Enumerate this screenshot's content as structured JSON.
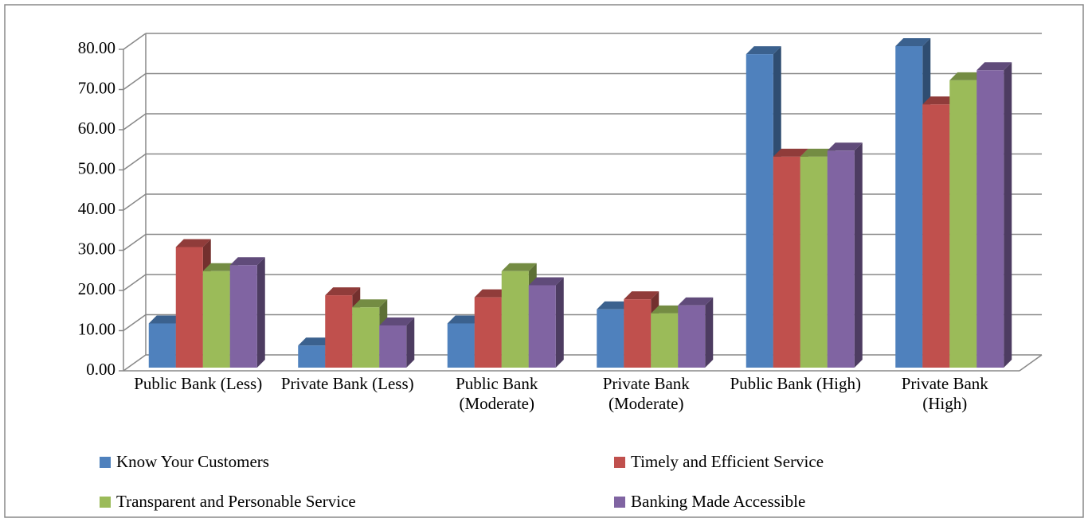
{
  "chart_data": {
    "type": "bar3d",
    "categories": [
      "Public Bank (Less)",
      "Private Bank (Less)",
      "Public Bank (Moderate)",
      "Private Bank (Moderate)",
      "Public Bank (High)",
      "Private Bank (High)"
    ],
    "series": [
      {
        "name": "Know Your Customers",
        "color": "#4f81bd",
        "values": [
          11,
          5.5,
          11,
          14.5,
          78,
          80
        ]
      },
      {
        "name": "Timely and Efficient Service",
        "color": "#c0504d",
        "values": [
          30,
          18,
          17.5,
          17,
          52.5,
          65.5
        ]
      },
      {
        "name": "Transparent and Personable Service",
        "color": "#9bbb59",
        "values": [
          24,
          15,
          24,
          13.5,
          52.5,
          71.5
        ]
      },
      {
        "name": "Banking Made Accessible",
        "color": "#8064a2",
        "values": [
          25.5,
          10.5,
          20.5,
          15.5,
          54,
          74
        ]
      }
    ],
    "ylim": [
      0,
      80
    ],
    "yticks": [
      {
        "value": 0,
        "label": "0.00"
      },
      {
        "value": 10,
        "label": "10.00"
      },
      {
        "value": 20,
        "label": "20.00"
      },
      {
        "value": 30,
        "label": "30.00"
      },
      {
        "value": 40,
        "label": "40.00"
      },
      {
        "value": 50,
        "label": "50.00"
      },
      {
        "value": 60,
        "label": "60.00"
      },
      {
        "value": 70,
        "label": "70.00"
      },
      {
        "value": 80,
        "label": "80.00"
      }
    ],
    "grid": true,
    "legend": "bottom"
  }
}
